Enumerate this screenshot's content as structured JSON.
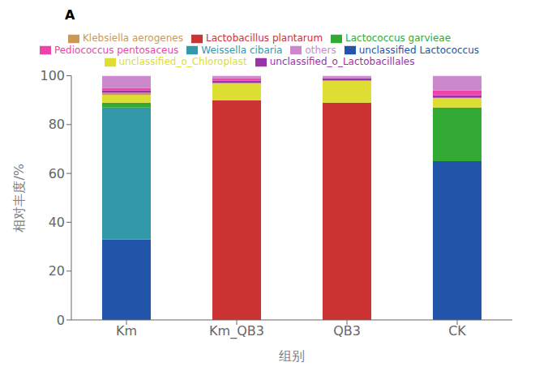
{
  "chart_data": {
    "type": "bar",
    "stacked": true,
    "grid": false,
    "legend": "top",
    "annotations": [
      {
        "text": "A"
      }
    ],
    "xlabel": "组别",
    "ylabel": "相对丰度/%",
    "categories": [
      "Km",
      "Km_QB3",
      "QB3",
      "CK"
    ],
    "series": [
      {
        "name": "unclassified Lactococcus",
        "color": "#2255aa",
        "values": [
          33,
          0,
          0,
          65
        ]
      },
      {
        "name": "Weissella cibaria",
        "color": "#3399aa",
        "values": [
          54,
          0,
          0,
          0
        ]
      },
      {
        "name": "Lactobacillus plantarum",
        "color": "#cc3333",
        "values": [
          0,
          90,
          89,
          0
        ]
      },
      {
        "name": "Lactococcus garvieae",
        "color": "#33aa33",
        "values": [
          2,
          0,
          0,
          22
        ]
      },
      {
        "name": "unclassified_o_Chloroplast",
        "color": "#dddd33",
        "values": [
          3,
          7,
          9,
          4
        ]
      },
      {
        "name": "Klebsiella aerogenes",
        "color": "#cc9955",
        "values": [
          1,
          0,
          0,
          0
        ]
      },
      {
        "name": "unclassified_o_Lactobacillales",
        "color": "#9933aa",
        "values": [
          1,
          1,
          1,
          1
        ]
      },
      {
        "name": "Pediococcus pentosaceus",
        "color": "#ee44aa",
        "values": [
          1,
          1,
          0,
          2
        ]
      },
      {
        "name": "others",
        "color": "#cc88cc",
        "values": [
          5,
          1,
          1,
          6
        ]
      }
    ],
    "ylim": [
      0,
      100
    ],
    "yticks": [
      0,
      20,
      40,
      60,
      80,
      100
    ]
  }
}
